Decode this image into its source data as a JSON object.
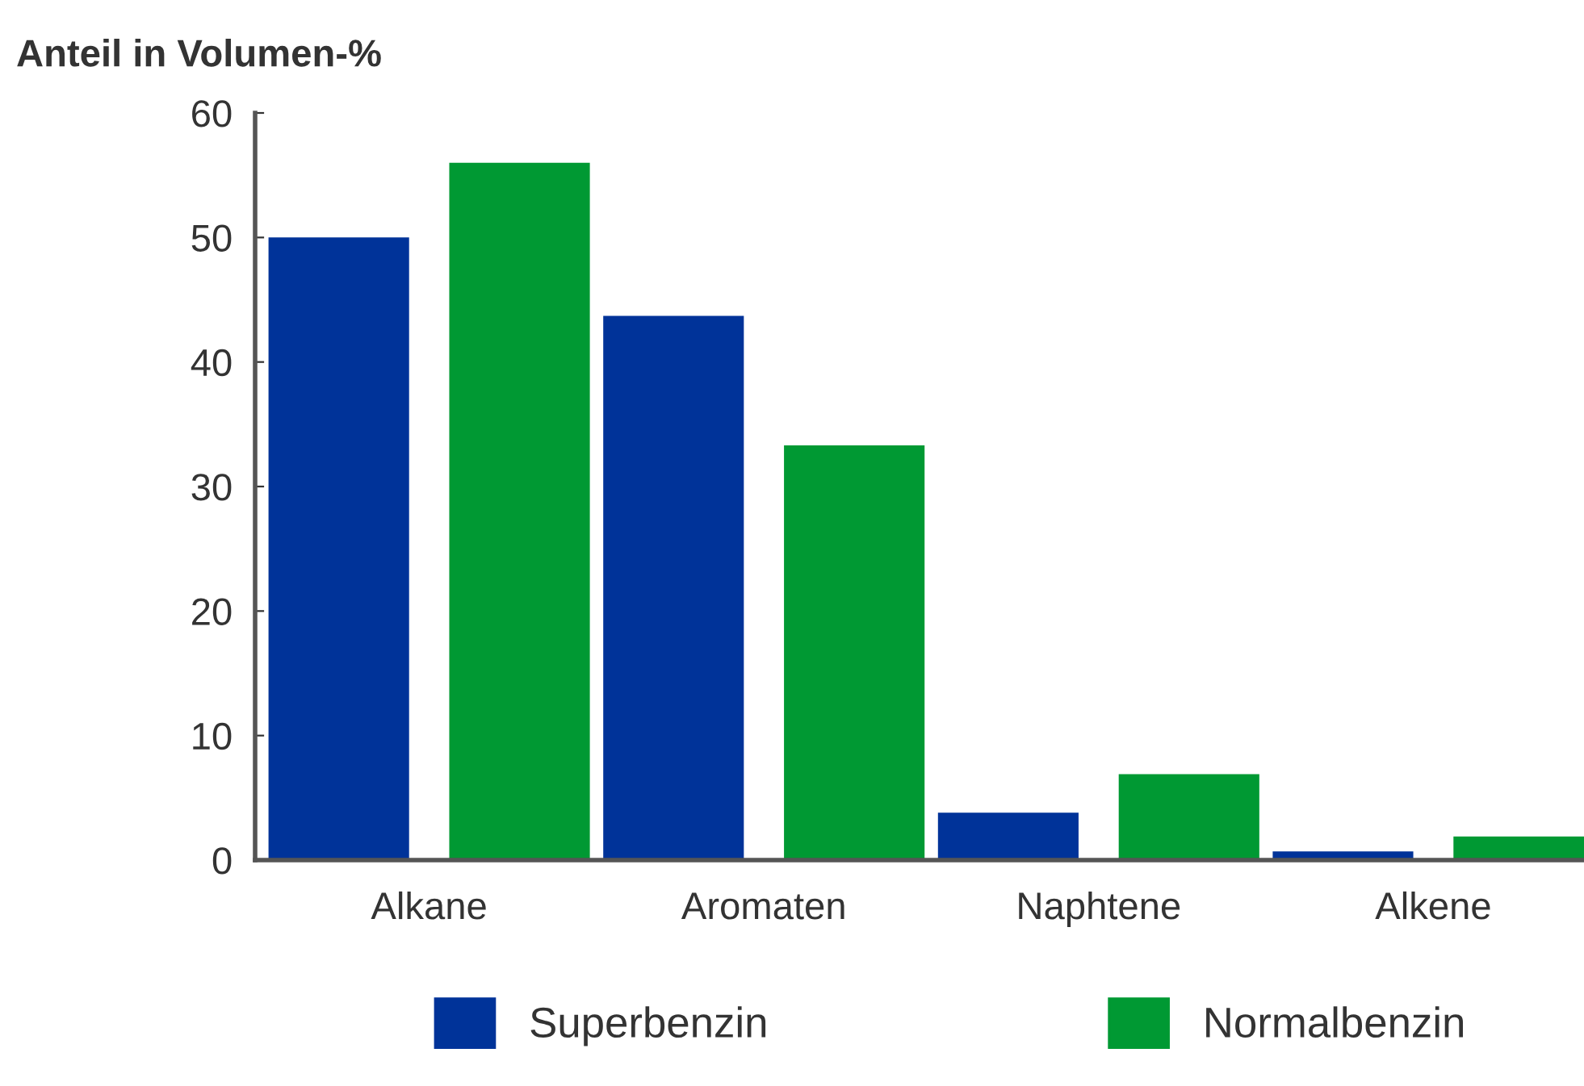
{
  "chart_data": {
    "type": "bar",
    "ylabel": "Anteil in Volumen-%",
    "categories": [
      "Alkane",
      "Aromaten",
      "Naphtene",
      "Alkene"
    ],
    "series": [
      {
        "name": "Superbenzin",
        "color": "#003399",
        "values": [
          50,
          43.7,
          3.8,
          0.7
        ]
      },
      {
        "name": "Normalbenzin",
        "color": "#009933",
        "values": [
          56,
          33.3,
          6.9,
          1.9
        ]
      }
    ],
    "ylim": [
      0,
      60
    ],
    "yticks": [
      0,
      10,
      20,
      30,
      40,
      50,
      60
    ],
    "grid": false,
    "legend": "bottom"
  }
}
